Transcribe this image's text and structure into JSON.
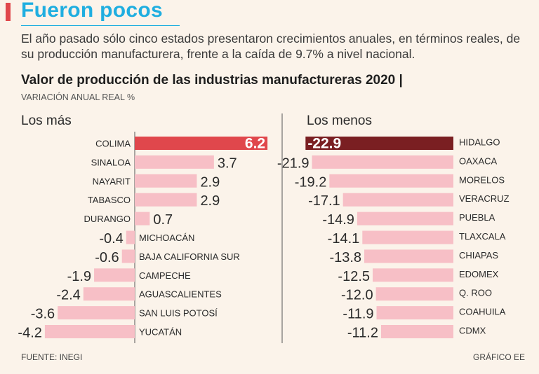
{
  "header": {
    "headline": "Fueron pocos",
    "intro": "El año pasado sólo cinco estados presentaron crecimientos anuales, en términos reales, de su producción manufacturera, frente a la caída de 9.7% a nivel nacional."
  },
  "chart_title": "Valor de producción de las industrias manufactureras 2020 |",
  "chart_subtitle": "VARIACIÓN ANUAL REAL %",
  "footer": {
    "source": "FUENTE: INEGI",
    "credit": "GRÁFICO EE"
  },
  "colors": {
    "accent": "#e0474c",
    "headline": "#1faee0",
    "bar": "#f7bfc6",
    "top_bar": "#e0474c",
    "bottom_bar": "#7a1f22"
  },
  "chart_data": [
    {
      "type": "bar",
      "title": "Los más",
      "categories": [
        "COLIMA",
        "SINALOA",
        "NAYARIT",
        "TABASCO",
        "DURANGO",
        "MICHOACÁN",
        "BAJA CALIFORNIA SUR",
        "CAMPECHE",
        "AGUASCALIENTES",
        "SAN LUIS POTOSÍ",
        "YUCATÁN"
      ],
      "values": [
        6.2,
        3.7,
        2.9,
        2.9,
        0.7,
        -0.4,
        -0.6,
        -1.9,
        -2.4,
        -3.6,
        -4.2
      ],
      "value_labels": [
        "6.2",
        "3.7",
        "2.9",
        "2.9",
        "0.7",
        "-0.4",
        "-0.6",
        "-1.9",
        "-2.4",
        "-3.6",
        "-4.2"
      ],
      "highlight": "COLIMA"
    },
    {
      "type": "bar",
      "title": "Los menos",
      "categories": [
        "HIDALGO",
        "OAXACA",
        "MORELOS",
        "VERACRUZ",
        "PUEBLA",
        "TLAXCALA",
        "CHIAPAS",
        "EDOMEX",
        "Q. ROO",
        "COAHUILA",
        "CDMX"
      ],
      "values": [
        -22.9,
        -21.9,
        -19.2,
        -17.1,
        -14.9,
        -14.1,
        -13.8,
        -12.5,
        -12.0,
        -11.9,
        -11.2
      ],
      "value_labels": [
        "-22.9",
        "-21.9",
        "-19.2",
        "-17.1",
        "-14.9",
        "-14.1",
        "-13.8",
        "-12.5",
        "-12.0",
        "-11.9",
        "-11.2"
      ],
      "highlight": "HIDALGO"
    }
  ]
}
